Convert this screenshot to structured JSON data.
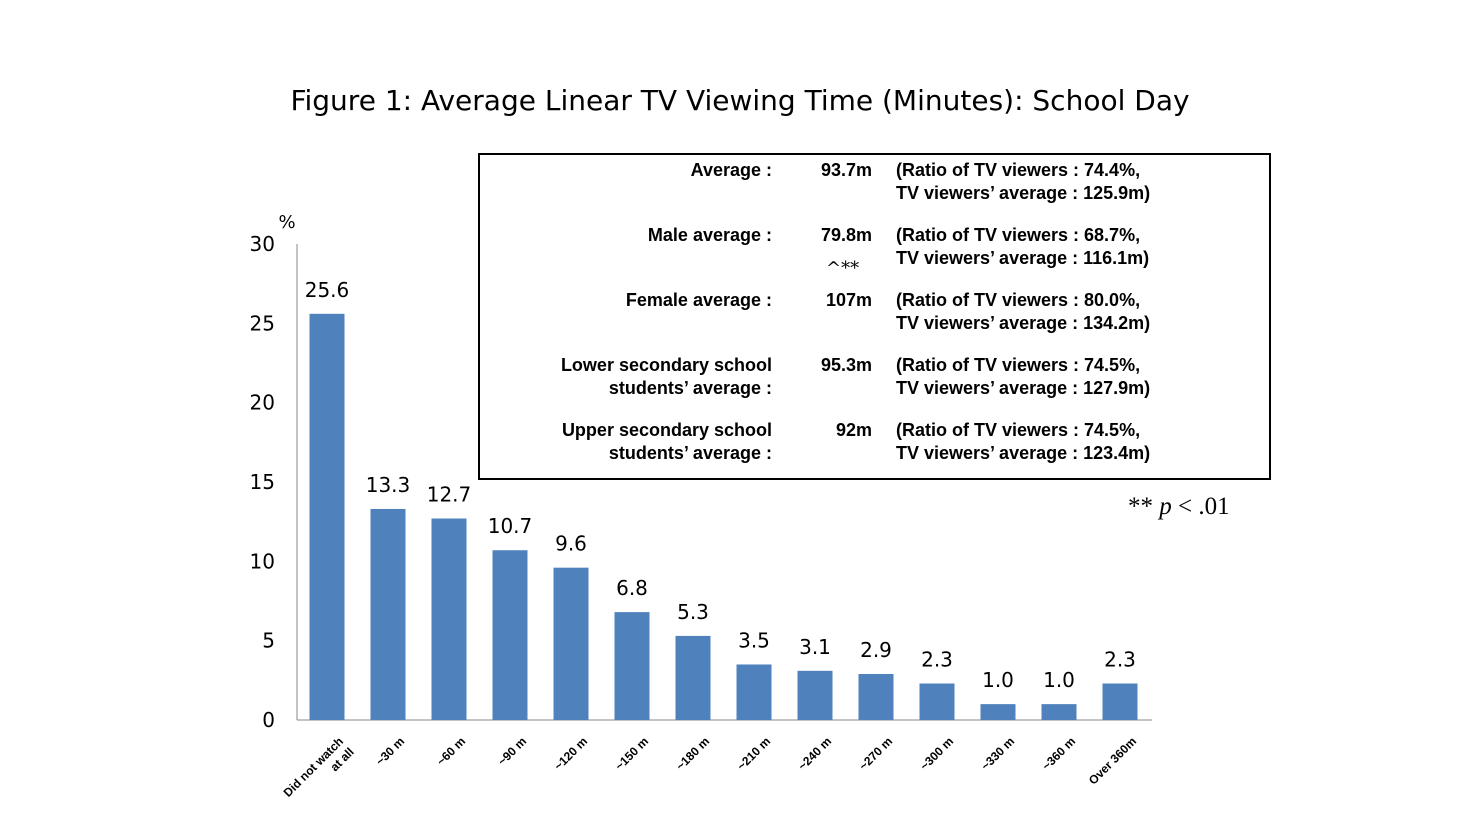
{
  "title": "Figure 1: Average Linear TV Viewing Time (Minutes): School Day",
  "chart_data": {
    "type": "bar",
    "categories": [
      "Did not watch at all",
      "~30 m",
      "~60 m",
      "~90 m",
      "~120 m",
      "~150 m",
      "~180 m",
      "~210 m",
      "~240 m",
      "~270 m",
      "~300 m",
      "~330 m",
      "~360 m",
      "Over 360m"
    ],
    "category_lines": [
      [
        "Did not watch",
        "at all"
      ],
      [
        "~30 m"
      ],
      [
        "~60 m"
      ],
      [
        "~90 m"
      ],
      [
        "~120 m"
      ],
      [
        "~150 m"
      ],
      [
        "~180 m"
      ],
      [
        "~210 m"
      ],
      [
        "~240 m"
      ],
      [
        "~270 m"
      ],
      [
        "~300 m"
      ],
      [
        "~330 m"
      ],
      [
        "~360 m"
      ],
      [
        "Over 360m"
      ]
    ],
    "values": [
      25.6,
      13.3,
      12.7,
      10.7,
      9.6,
      6.8,
      5.3,
      3.5,
      3.1,
      2.9,
      2.3,
      1.0,
      1.0,
      2.3
    ],
    "value_labels": [
      "25.6",
      "13.3",
      "12.7",
      "10.7",
      "9.6",
      "6.8",
      "5.3",
      "3.5",
      "3.1",
      "2.9",
      "2.3",
      "1.0",
      "1.0",
      "2.3"
    ],
    "ylabel": "%",
    "ylim": [
      0,
      30
    ],
    "yticks": [
      0,
      5,
      10,
      15,
      20,
      25,
      30
    ],
    "bar_color": "#4f81bd",
    "grid": false
  },
  "stats": [
    {
      "label": "Average :",
      "value": "93.7m",
      "ratio": "(Ratio of TV viewers : 74.4%,\nTV viewers’ average : 125.9m)"
    },
    {
      "label": "Male average :",
      "value": "79.8m",
      "ratio": "(Ratio of TV viewers : 68.7%,\nTV viewers’ average : 116.1m)"
    },
    {
      "label": "Female average :",
      "value": "107m",
      "ratio": "(Ratio of TV viewers : 80.0%,\nTV viewers’ average : 134.2m)"
    },
    {
      "label": "Lower secondary school\nstudents’ average :",
      "value": "95.3m",
      "ratio": "(Ratio of TV viewers : 74.5%,\nTV viewers’ average : 127.9m)"
    },
    {
      "label": "Upper secondary school\nstudents’ average :",
      "value": "92m",
      "ratio": "(Ratio of TV viewers : 74.5%,\nTV viewers’ average : 123.4m)"
    }
  ],
  "significance_marker": "^**",
  "p_note": {
    "stars": "**",
    "p": "p",
    "rest": " < .01"
  }
}
